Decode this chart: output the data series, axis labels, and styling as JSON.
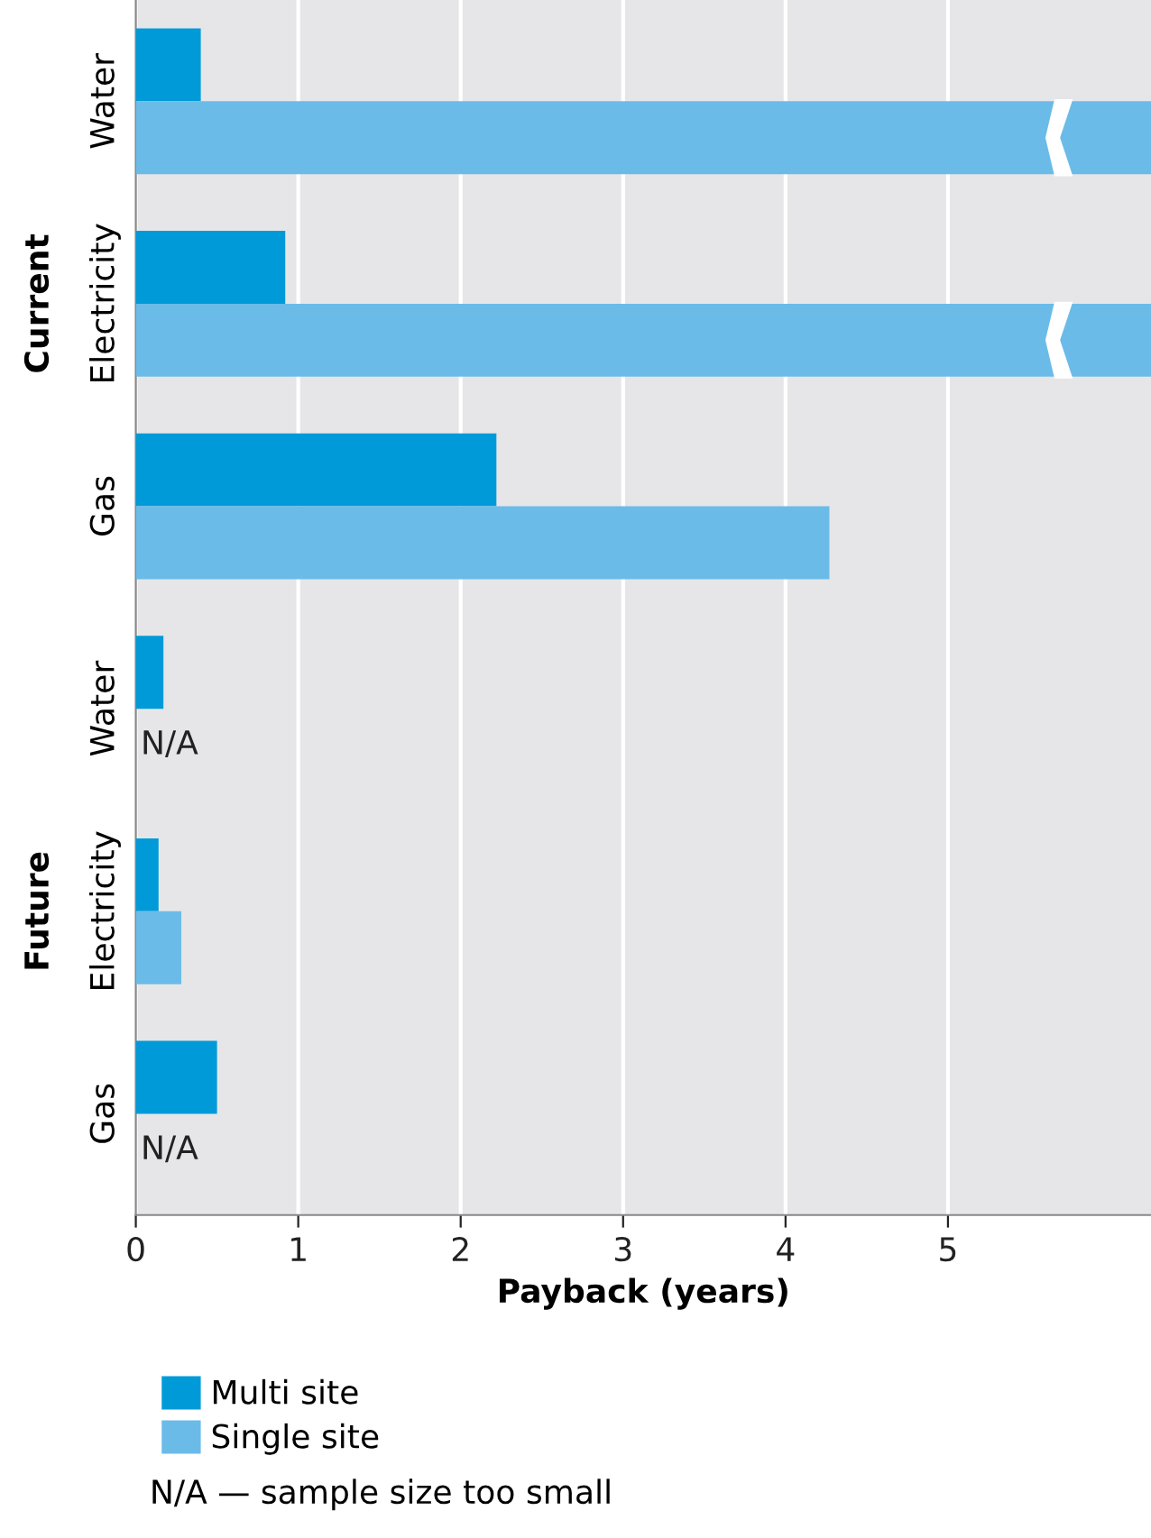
{
  "chart_data": {
    "type": "bar",
    "orientation": "horizontal",
    "xlabel": "Payback (years)",
    "categories": [
      "Water",
      "Electricity",
      "Gas",
      "Water",
      "Electricity",
      "Gas"
    ],
    "series": [
      {
        "name": "Multi site",
        "color": "#009ad9",
        "values": [
          0.4,
          0.92,
          2.22,
          0.17,
          0.14,
          0.5
        ]
      },
      {
        "name": "Single site",
        "color": "#6bbbe8",
        "values": [
          6.25,
          6.25,
          4.27,
          null,
          0.28,
          null
        ],
        "value_labels": [
          null,
          null,
          null,
          "N/A",
          null,
          "N/A"
        ]
      }
    ],
    "xlim": [
      0,
      6.25
    ],
    "xticks": [
      0,
      1,
      2,
      3,
      4,
      5
    ],
    "grid": "x",
    "legend": "bottom",
    "annotations": [
      "Current",
      "Future",
      "N/A — sample size too small"
    ]
  }
}
